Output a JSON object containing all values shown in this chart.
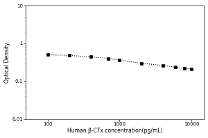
{
  "x_values": [
    100,
    200,
    400,
    700,
    1000,
    2000,
    4000,
    6000,
    8000,
    10000
  ],
  "y_values": [
    0.5,
    0.48,
    0.44,
    0.4,
    0.36,
    0.3,
    0.26,
    0.235,
    0.22,
    0.21
  ],
  "xlabel": "Human β-CTx concentration(pg/mL)",
  "ylabel": "Optical Density",
  "xlim": [
    50,
    15000
  ],
  "ylim": [
    0.01,
    10
  ],
  "xticks": [
    100,
    1000,
    10000
  ],
  "xtick_labels": [
    "100",
    "1000",
    "10000"
  ],
  "yticks": [
    0.01,
    0.1,
    1,
    10
  ],
  "ytick_labels": [
    "0.01",
    "0.1",
    "1",
    "10"
  ],
  "line_color": "#000000",
  "marker": "s",
  "marker_size": 3,
  "linestyle": "dotted",
  "label_fontsize": 5.5,
  "tick_fontsize": 5,
  "background_color": "#ffffff",
  "linewidth": 0.8,
  "figure_width": 3.0,
  "figure_height": 2.0,
  "dpi": 100
}
